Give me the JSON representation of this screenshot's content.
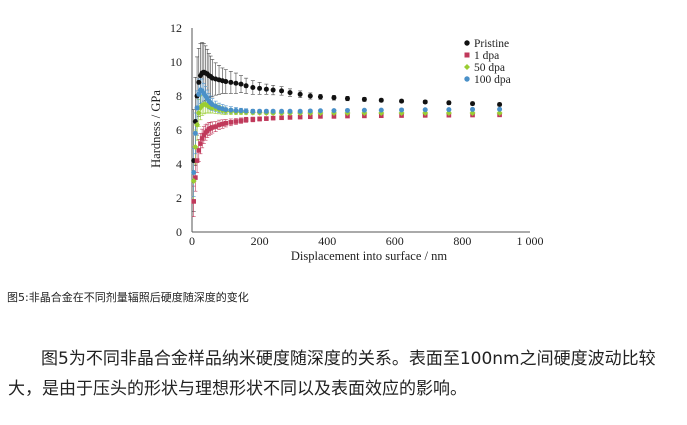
{
  "chart_data": {
    "type": "scatter",
    "xlabel": "Displacement into surface / nm",
    "ylabel": "Hardness / GPa",
    "xlim": [
      0,
      1000
    ],
    "ylim": [
      0,
      12
    ],
    "x_ticks": [
      "0",
      "200",
      "400",
      "600",
      "800",
      "1 000"
    ],
    "y_ticks": [
      "0",
      "2",
      "4",
      "6",
      "8",
      "10",
      "12"
    ],
    "grid": false,
    "legend_position": "top-right",
    "series": [
      {
        "name": "Pristine",
        "color": "#111111",
        "marker": "circle",
        "x": [
          5,
          10,
          15,
          20,
          25,
          30,
          35,
          40,
          45,
          50,
          55,
          60,
          70,
          80,
          90,
          100,
          115,
          130,
          145,
          160,
          180,
          200,
          220,
          240,
          265,
          290,
          320,
          350,
          380,
          420,
          460,
          510,
          560,
          620,
          690,
          760,
          830,
          910
        ],
        "y": [
          4.2,
          6.5,
          8.0,
          8.8,
          9.2,
          9.35,
          9.4,
          9.35,
          9.3,
          9.2,
          9.15,
          9.05,
          9.0,
          8.95,
          8.9,
          8.85,
          8.8,
          8.75,
          8.7,
          8.6,
          8.5,
          8.45,
          8.4,
          8.35,
          8.3,
          8.2,
          8.1,
          8.0,
          7.95,
          7.9,
          7.85,
          7.8,
          7.75,
          7.7,
          7.65,
          7.6,
          7.55,
          7.5
        ],
        "error_y": [
          3.0,
          2.6,
          2.3,
          2.0,
          1.9,
          1.8,
          1.7,
          1.6,
          1.45,
          1.3,
          1.2,
          1.1,
          0.95,
          0.85,
          0.75,
          0.7,
          0.65,
          0.6,
          0.5,
          0.45,
          0.4,
          0.35,
          0.3,
          0.28,
          0.25,
          0.22,
          0.2,
          0.18,
          0.15,
          0.14,
          0.13,
          0.12,
          0.1,
          0.1,
          0.1,
          0.1,
          0.1,
          0.1
        ]
      },
      {
        "name": "1 dpa",
        "color": "#c0395b",
        "marker": "square",
        "x": [
          5,
          10,
          15,
          20,
          25,
          30,
          35,
          40,
          45,
          50,
          55,
          60,
          70,
          80,
          90,
          100,
          115,
          130,
          145,
          160,
          180,
          200,
          220,
          240,
          265,
          290,
          320,
          350,
          380,
          420,
          460,
          510,
          560,
          620,
          690,
          760,
          830,
          910
        ],
        "y": [
          1.8,
          3.2,
          4.2,
          4.8,
          5.2,
          5.5,
          5.7,
          5.85,
          5.95,
          6.05,
          6.1,
          6.15,
          6.2,
          6.3,
          6.35,
          6.4,
          6.45,
          6.5,
          6.55,
          6.6,
          6.62,
          6.65,
          6.67,
          6.7,
          6.72,
          6.74,
          6.76,
          6.78,
          6.8,
          6.8,
          6.82,
          6.83,
          6.84,
          6.85,
          6.86,
          6.87,
          6.88,
          6.89
        ],
        "error_y": [
          0.9,
          0.8,
          0.7,
          0.65,
          0.6,
          0.55,
          0.5,
          0.45,
          0.4,
          0.38,
          0.35,
          0.33,
          0.3,
          0.28,
          0.25,
          0.22,
          0.2,
          0.18,
          0.16,
          0.15,
          0.14,
          0.12,
          0.11,
          0.1,
          0.1,
          0.09,
          0.09,
          0.08,
          0.08,
          0.08,
          0.07,
          0.07,
          0.07,
          0.07,
          0.06,
          0.06,
          0.06,
          0.06
        ]
      },
      {
        "name": "50 dpa",
        "color": "#9acd32",
        "marker": "diamond",
        "x": [
          5,
          10,
          15,
          20,
          25,
          30,
          35,
          40,
          45,
          50,
          55,
          60,
          70,
          80,
          90,
          100,
          115,
          130,
          145,
          160,
          180,
          200,
          220,
          240,
          265,
          290,
          320,
          350,
          380,
          420,
          460,
          510,
          560,
          620,
          690,
          760,
          830,
          910
        ],
        "y": [
          3.0,
          5.0,
          6.3,
          7.0,
          7.3,
          7.45,
          7.5,
          7.5,
          7.45,
          7.4,
          7.35,
          7.3,
          7.25,
          7.2,
          7.15,
          7.1,
          7.08,
          7.06,
          7.05,
          7.04,
          7.03,
          7.02,
          7.01,
          7.0,
          7.0,
          7.0,
          7.0,
          7.0,
          7.0,
          7.0,
          7.0,
          7.0,
          7.0,
          7.0,
          7.0,
          7.0,
          7.0,
          7.0
        ],
        "error_y": [
          1.2,
          1.0,
          0.9,
          0.8,
          0.7,
          0.6,
          0.55,
          0.5,
          0.45,
          0.4,
          0.35,
          0.3,
          0.28,
          0.25,
          0.22,
          0.2,
          0.18,
          0.16,
          0.14,
          0.12,
          0.11,
          0.1,
          0.1,
          0.09,
          0.09,
          0.08,
          0.08,
          0.08,
          0.07,
          0.07,
          0.07,
          0.07,
          0.06,
          0.06,
          0.06,
          0.06,
          0.06,
          0.06
        ]
      },
      {
        "name": "100 dpa",
        "color": "#4a90c8",
        "marker": "circle",
        "x": [
          5,
          10,
          15,
          20,
          25,
          30,
          35,
          40,
          45,
          50,
          55,
          60,
          70,
          80,
          90,
          100,
          115,
          130,
          145,
          160,
          180,
          200,
          220,
          240,
          265,
          290,
          320,
          350,
          380,
          420,
          460,
          510,
          560,
          620,
          690,
          760,
          830,
          910
        ],
        "y": [
          3.5,
          5.8,
          7.3,
          8.1,
          8.35,
          8.3,
          8.15,
          8.0,
          7.85,
          7.7,
          7.6,
          7.5,
          7.4,
          7.3,
          7.25,
          7.2,
          7.17,
          7.15,
          7.13,
          7.12,
          7.1,
          7.1,
          7.1,
          7.1,
          7.1,
          7.1,
          7.1,
          7.12,
          7.13,
          7.14,
          7.15,
          7.16,
          7.17,
          7.18,
          7.19,
          7.2,
          7.21,
          7.22
        ],
        "error_y": [
          1.4,
          1.2,
          1.0,
          0.9,
          0.8,
          0.7,
          0.6,
          0.55,
          0.5,
          0.45,
          0.4,
          0.35,
          0.3,
          0.28,
          0.25,
          0.22,
          0.2,
          0.18,
          0.15,
          0.13,
          0.12,
          0.1,
          0.1,
          0.09,
          0.09,
          0.08,
          0.08,
          0.08,
          0.07,
          0.07,
          0.07,
          0.07,
          0.06,
          0.06,
          0.06,
          0.06,
          0.06,
          0.06
        ]
      }
    ]
  },
  "caption": "图5:非晶合金在不同剂量辐照后硬度随深度的变化",
  "paragraph": "图5为不同非晶合金样品纳米硬度随深度的关系。表面至100nm之间硬度波动比较大，是由于压头的形状与理想形状不同以及表面效应的影响。"
}
